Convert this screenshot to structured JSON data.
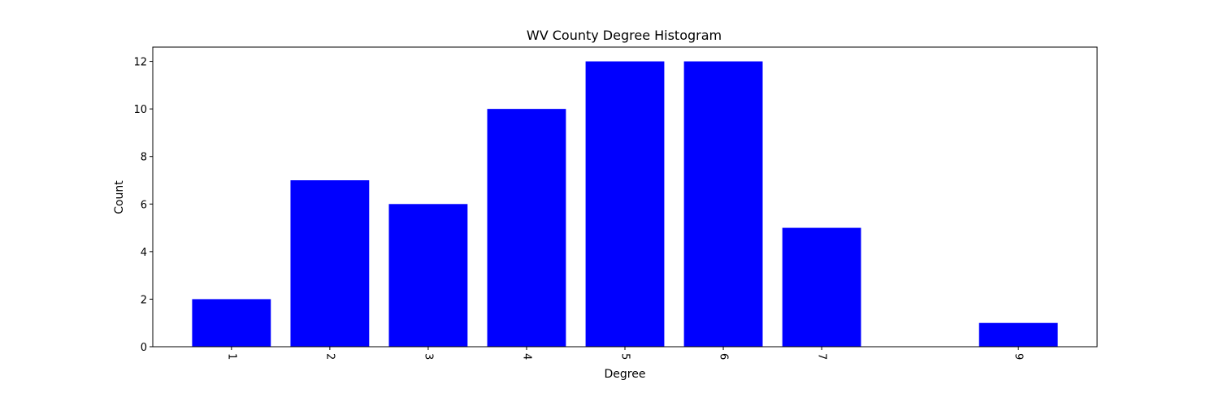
{
  "chart_data": {
    "type": "bar",
    "title": "WV County Degree Histogram",
    "xlabel": "Degree",
    "ylabel": "Count",
    "x": [
      1,
      2,
      3,
      4,
      5,
      6,
      7,
      9
    ],
    "values": [
      2,
      7,
      6,
      10,
      12,
      12,
      5,
      1
    ],
    "xlim": [
      0.2,
      9.8
    ],
    "ylim": [
      0,
      12.6
    ],
    "yticks": [
      0,
      2,
      4,
      6,
      8,
      10,
      12
    ],
    "xtick_rotation": "rotated -90 degrees",
    "grid": false,
    "legend": "none",
    "bar_color": "#0000ff"
  }
}
